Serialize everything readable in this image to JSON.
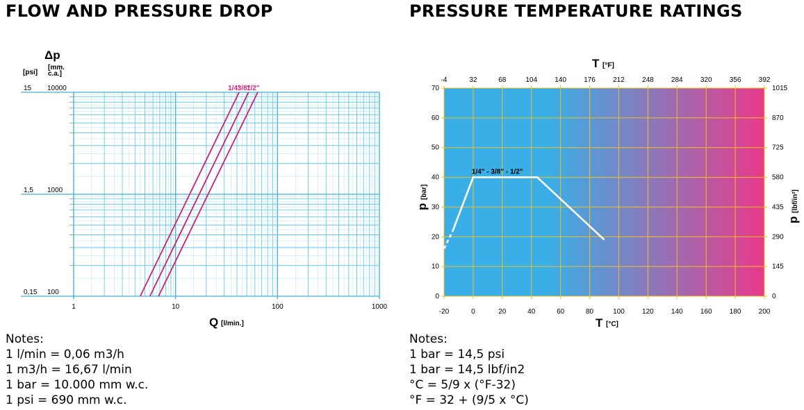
{
  "titles": {
    "left": "FLOW AND PRESSURE DROP",
    "right": "PRESSURE TEMPERATURE RATINGS"
  },
  "chart_data": [
    {
      "type": "line",
      "title": "FLOW AND PRESSURE DROP",
      "x_scale": "log",
      "y_scale": "log",
      "xlabel_main": "Q",
      "xlabel_unit": "[l/min.]",
      "ylabel_main": "Δp",
      "ylabel_unit_psi": "[psi]",
      "ylabel_unit_mm_line1": "[mm.",
      "ylabel_unit_mm_line2": "c.a.]",
      "xlim": [
        1,
        1000
      ],
      "ylim": [
        100,
        10000
      ],
      "x_ticks": [
        "1",
        "10",
        "100",
        "1000"
      ],
      "y_ticks_psi": [
        "0,15",
        "1,5",
        "15"
      ],
      "y_ticks_mm": [
        "100",
        "1000",
        "10000"
      ],
      "grid": true,
      "series": [
        {
          "name": "1/4\"",
          "x": [
            4.5,
            42
          ],
          "y": [
            100,
            10000
          ]
        },
        {
          "name": "3/8\"",
          "x": [
            5.6,
            52
          ],
          "y": [
            100,
            10000
          ]
        },
        {
          "name": "1/2\"",
          "x": [
            6.8,
            64
          ],
          "y": [
            100,
            10000
          ]
        }
      ],
      "colors": {
        "grid": "#5ac8e6",
        "lines": "#cc1e7a",
        "labels": "#d6247f"
      }
    },
    {
      "type": "line",
      "title": "PRESSURE TEMPERATURE RATINGS",
      "xlabel_main": "T",
      "xlabel_unit": "[°C]",
      "x2label_main": "T",
      "x2label_unit": "[°F]",
      "ylabel_main": "p",
      "ylabel_unit": "[bar]",
      "y2label_main": "p",
      "y2label_unit": "[lbf/in²]",
      "xlim": [
        -20,
        200
      ],
      "ylim": [
        0,
        70
      ],
      "x_ticks": [
        "-20",
        "0",
        "20",
        "40",
        "60",
        "80",
        "100",
        "120",
        "140",
        "160",
        "180",
        "200"
      ],
      "x2_ticks": [
        "-4",
        "32",
        "68",
        "104",
        "140",
        "176",
        "212",
        "248",
        "284",
        "320",
        "356",
        "392"
      ],
      "y_ticks": [
        "0",
        "10",
        "20",
        "30",
        "40",
        "50",
        "60",
        "70"
      ],
      "y2_ticks": [
        "0",
        "145",
        "290",
        "435",
        "580",
        "725",
        "870",
        "1015"
      ],
      "grid": true,
      "series": [
        {
          "name": "1/4\" - 3/8\" - 1/2\"",
          "x": [
            -14,
            0,
            44,
            90
          ],
          "y": [
            22,
            40,
            40,
            19
          ],
          "dashed_start": [
            [
              -20,
              16
            ],
            [
              -14,
              22
            ]
          ]
        }
      ],
      "colors": {
        "bg_start": "#3aaee6",
        "bg_end": "#e83a8a",
        "grid": "#f0c020",
        "line": "#ffffff"
      }
    }
  ],
  "notes": {
    "left": [
      "Notes:",
      "1 l/min = 0,06 m3/h",
      "1 m3/h = 16,67 l/min",
      "1 bar = 10.000 mm w.c.",
      "1 psi = 690 mm w.c."
    ],
    "right": [
      "Notes:",
      "1 bar = 14,5 psi",
      "1 bar = 14,5 lbf/in2",
      "°C = 5/9 x (°F-32)",
      "°F = 32 + (9/5 x °C)"
    ]
  }
}
